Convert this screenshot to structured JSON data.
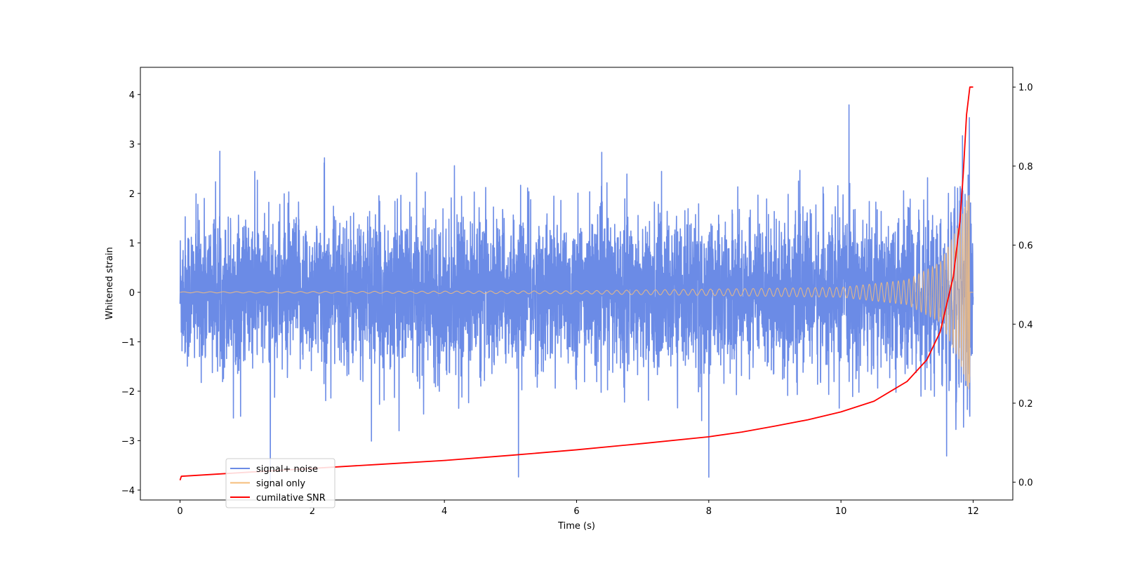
{
  "chart_data": {
    "type": "line",
    "title": "",
    "xlabel": "Time (s)",
    "ylabel": "Whitened strain",
    "y2label": "",
    "xlim": [
      -0.6,
      12.6
    ],
    "ylim": [
      -4.2,
      4.55
    ],
    "y2lim": [
      -0.045,
      1.05
    ],
    "xticks": [
      0,
      2,
      4,
      6,
      8,
      10,
      12
    ],
    "yticks": [
      -4,
      -3,
      -2,
      -1,
      0,
      1,
      2,
      3,
      4
    ],
    "y2ticks": [
      0.0,
      0.2,
      0.4,
      0.6,
      0.8,
      1.0
    ],
    "x_tick_labels": [
      "0",
      "2",
      "4",
      "6",
      "8",
      "10",
      "12"
    ],
    "y_tick_labels": [
      "−4",
      "−3",
      "−2",
      "−1",
      "0",
      "1",
      "2",
      "3",
      "4"
    ],
    "y2_tick_labels": [
      "0.0",
      "0.2",
      "0.4",
      "0.6",
      "0.8",
      "1.0"
    ],
    "grid": false,
    "legend_position": "lower-left",
    "series": [
      {
        "name": "signal+ noise",
        "color": "#6b8be6",
        "axis": "left",
        "kind": "noise-envelope",
        "t_range": [
          0,
          12
        ],
        "typical_amplitude": 1.6,
        "spike_max": [
          4.15,
          -3.8
        ]
      },
      {
        "name": "signal only",
        "color": "#f5bd7a",
        "axis": "left",
        "kind": "chirp",
        "t_merger": 11.95,
        "amplitude_at": [
          {
            "t": 0,
            "a": 0.01
          },
          {
            "t": 6,
            "a": 0.03
          },
          {
            "t": 10,
            "a": 0.1
          },
          {
            "t": 11,
            "a": 0.25
          },
          {
            "t": 11.5,
            "a": 0.6
          },
          {
            "t": 11.8,
            "a": 1.4
          },
          {
            "t": 11.93,
            "a": 2.0
          }
        ]
      },
      {
        "name": "cumilative SNR",
        "color": "#ff0000",
        "axis": "right",
        "kind": "line",
        "x": [
          0,
          0.02,
          1,
          2,
          3,
          4,
          5,
          6,
          7,
          8,
          8.5,
          9,
          9.5,
          10,
          10.5,
          11,
          11.3,
          11.5,
          11.7,
          11.8,
          11.85,
          11.9,
          11.95,
          12.0
        ],
        "y": [
          0.005,
          0.015,
          0.025,
          0.035,
          0.045,
          0.055,
          0.068,
          0.082,
          0.098,
          0.115,
          0.127,
          0.142,
          0.158,
          0.178,
          0.205,
          0.255,
          0.31,
          0.38,
          0.52,
          0.66,
          0.78,
          0.93,
          1.0,
          1.0
        ]
      }
    ]
  }
}
